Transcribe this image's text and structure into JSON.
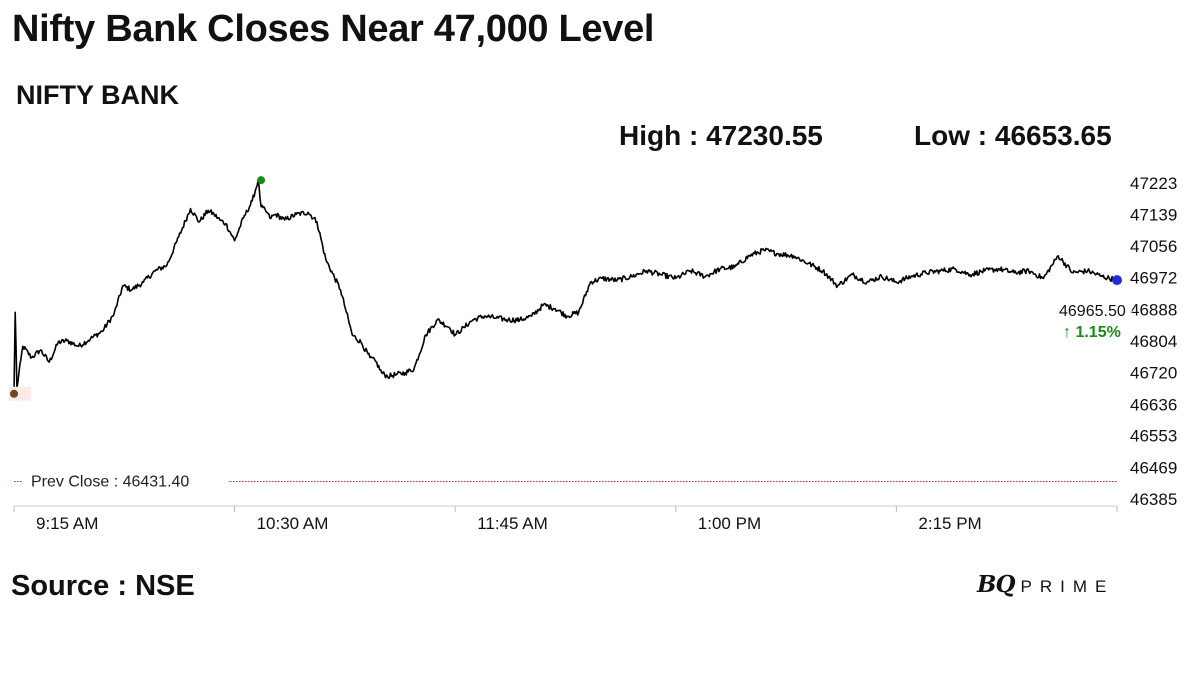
{
  "headline": "Nifty Bank Closes Near 47,000 Level",
  "instrument": "NIFTY BANK",
  "high_label": "High : 47230.55",
  "low_label": "Low : 46653.65",
  "source": "Source : NSE",
  "brand": {
    "bq": "BQ",
    "prime": "PRIME"
  },
  "colors": {
    "line": "#000000",
    "high_marker": "#1a8a1a",
    "close_marker": "#1f2fd6",
    "open_marker": "#6b4a1e",
    "prev_close_line": "#b03030",
    "change_text": "#1a8a1a"
  },
  "chart_data": {
    "type": "line",
    "title": "NIFTY BANK",
    "xlabel": "",
    "ylabel": "",
    "x_ticks": [
      "9:15 AM",
      "10:30 AM",
      "11:45 AM",
      "1:00 PM",
      "2:15 PM"
    ],
    "x_tick_minutes": [
      0,
      75,
      150,
      225,
      300
    ],
    "x_range_minutes": [
      0,
      375
    ],
    "y_ticks": [
      47223,
      47139,
      47056,
      46972,
      46888,
      46804,
      46720,
      46636,
      46553,
      46469,
      46385
    ],
    "ylim": [
      46385,
      47223
    ],
    "prev_close": 46431.4,
    "prev_close_label": "Prev Close : 46431.40",
    "last_value_label": "46965.50",
    "change_label": "↑ 1.15%",
    "high": 47230.55,
    "low": 46653.65,
    "close": 46965.5,
    "grid": false,
    "series": [
      {
        "name": "",
        "x": [
          0,
          0.4,
          1,
          3,
          6,
          9,
          12,
          15,
          18,
          22,
          26,
          30,
          34,
          37,
          40,
          44,
          48,
          52,
          56,
          60,
          63,
          66,
          68,
          70,
          72,
          75,
          78,
          81,
          83,
          84,
          86,
          87,
          89,
          92,
          96,
          100,
          103,
          106,
          111,
          113,
          115,
          118,
          121,
          123,
          125,
          127,
          130,
          133,
          136,
          140,
          144,
          148,
          150,
          153,
          156,
          160,
          164,
          168,
          172,
          176,
          180,
          184,
          188,
          192,
          196,
          200,
          205,
          210,
          215,
          220,
          225,
          230,
          235,
          240,
          245,
          250,
          255,
          260,
          265,
          270,
          275,
          280,
          285,
          290,
          295,
          300,
          305,
          310,
          315,
          320,
          325,
          330,
          335,
          340,
          345,
          350,
          355,
          360,
          365,
          370,
          375
        ],
        "values": [
          46664,
          46880,
          46680,
          46790,
          46760,
          46780,
          46748,
          46800,
          46805,
          46790,
          46810,
          46830,
          46875,
          46950,
          46940,
          46960,
          46990,
          47005,
          47080,
          47155,
          47120,
          47150,
          47140,
          47125,
          47115,
          47070,
          47130,
          47175,
          47230.55,
          47160,
          47145,
          47130,
          47140,
          47125,
          47140,
          47145,
          47120,
          47020,
          46940,
          46880,
          46820,
          46800,
          46760,
          46750,
          46720,
          46710,
          46715,
          46720,
          46730,
          46820,
          46860,
          46840,
          46820,
          46840,
          46860,
          46870,
          46865,
          46860,
          46860,
          46870,
          46900,
          46890,
          46870,
          46880,
          46960,
          46970,
          46965,
          46975,
          46990,
          46980,
          46970,
          46990,
          46975,
          46995,
          47000,
          47030,
          47045,
          47035,
          47030,
          47010,
          46990,
          46950,
          46980,
          46960,
          46975,
          46960,
          46975,
          46985,
          46990,
          46995,
          46980,
          46990,
          46995,
          46985,
          46990,
          46970,
          47030,
          46985,
          46990,
          46975,
          46965.5
        ]
      }
    ]
  }
}
